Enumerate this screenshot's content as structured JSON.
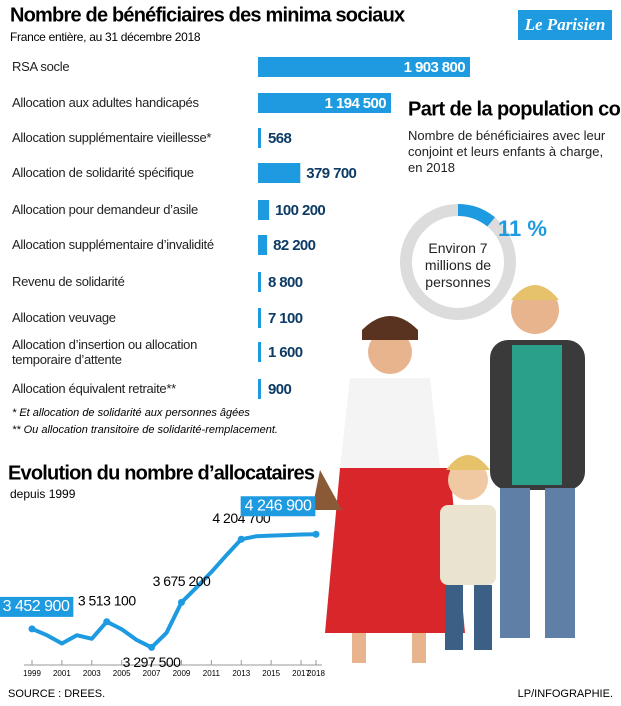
{
  "logo": "Le Parisien",
  "source": "SOURCE : DREES.",
  "credit": "LP/INFOGRAPHIE.",
  "chart_data": [
    {
      "type": "bar",
      "orientation": "horizontal",
      "title": "Nombre de bénéficiaires des minima sociaux",
      "subtitle": "France entière, au 31 décembre 2018",
      "categories": [
        "RSA socle",
        "Allocation aux adultes handicapés",
        "Allocation supplémentaire vieillesse*",
        "Allocation de solidarité spécifique",
        "Allocation pour demandeur d’asile",
        "Allocation supplémentaire d’invalidité",
        "Revenu de solidarité",
        "Allocation veuvage",
        "Allocation d’insertion ou allocation temporaire d’attente",
        "Allocation équivalent retraite**"
      ],
      "values": [
        1903800,
        1194500,
        568,
        379700,
        100200,
        82200,
        8800,
        7100,
        1600,
        900
      ],
      "value_labels": [
        "1 903 800",
        "1 194 500",
        "568",
        "379 700",
        "100 200",
        "82 200",
        "8 800",
        "7 100",
        "1 600",
        "900"
      ],
      "color": "#1e9be0",
      "notes": [
        "* Et allocation de solidarité aux personnes âgées",
        "** Ou allocation transitoire de solidarité-remplacement."
      ]
    },
    {
      "type": "donut",
      "title": "Part de la population couverte",
      "subtitle": "Nombre de bénéficiaires avec leur conjoint et leurs enfants à charge, en 2018",
      "values": [
        11
      ],
      "value_labels": [
        "11 %"
      ],
      "center_label": "Environ 7 millions de personnes",
      "color": "#1e9be0",
      "track_color": "#dcdcdc"
    },
    {
      "type": "line",
      "title": "Evolution du nombre d’allocataires",
      "subtitle": "depuis 1999",
      "x": [
        1999,
        2000,
        2001,
        2002,
        2003,
        2004,
        2005,
        2006,
        2007,
        2008,
        2009,
        2010,
        2011,
        2012,
        2013,
        2014,
        2015,
        2016,
        2017,
        2018
      ],
      "values": [
        3452900,
        3400000,
        3330000,
        3400000,
        3370000,
        3513100,
        3450000,
        3360000,
        3297500,
        3420000,
        3675200,
        3800000,
        3930000,
        4070000,
        4204700,
        4230000,
        4235000,
        4240000,
        4245000,
        4246900
      ],
      "value_labels": [
        "3 452 900",
        null,
        null,
        null,
        null,
        "3 513 100",
        null,
        null,
        "3 297 500",
        null,
        "3 675 200",
        null,
        null,
        null,
        "4 204 700",
        null,
        null,
        null,
        null,
        "4 246 900"
      ],
      "xticks": [
        1999,
        2001,
        2003,
        2005,
        2007,
        2009,
        2011,
        2013,
        2015,
        2017,
        2018
      ],
      "xlim": [
        1999,
        2018
      ],
      "ylim": [
        3150000,
        4400000
      ],
      "color": "#1e9be0"
    }
  ]
}
